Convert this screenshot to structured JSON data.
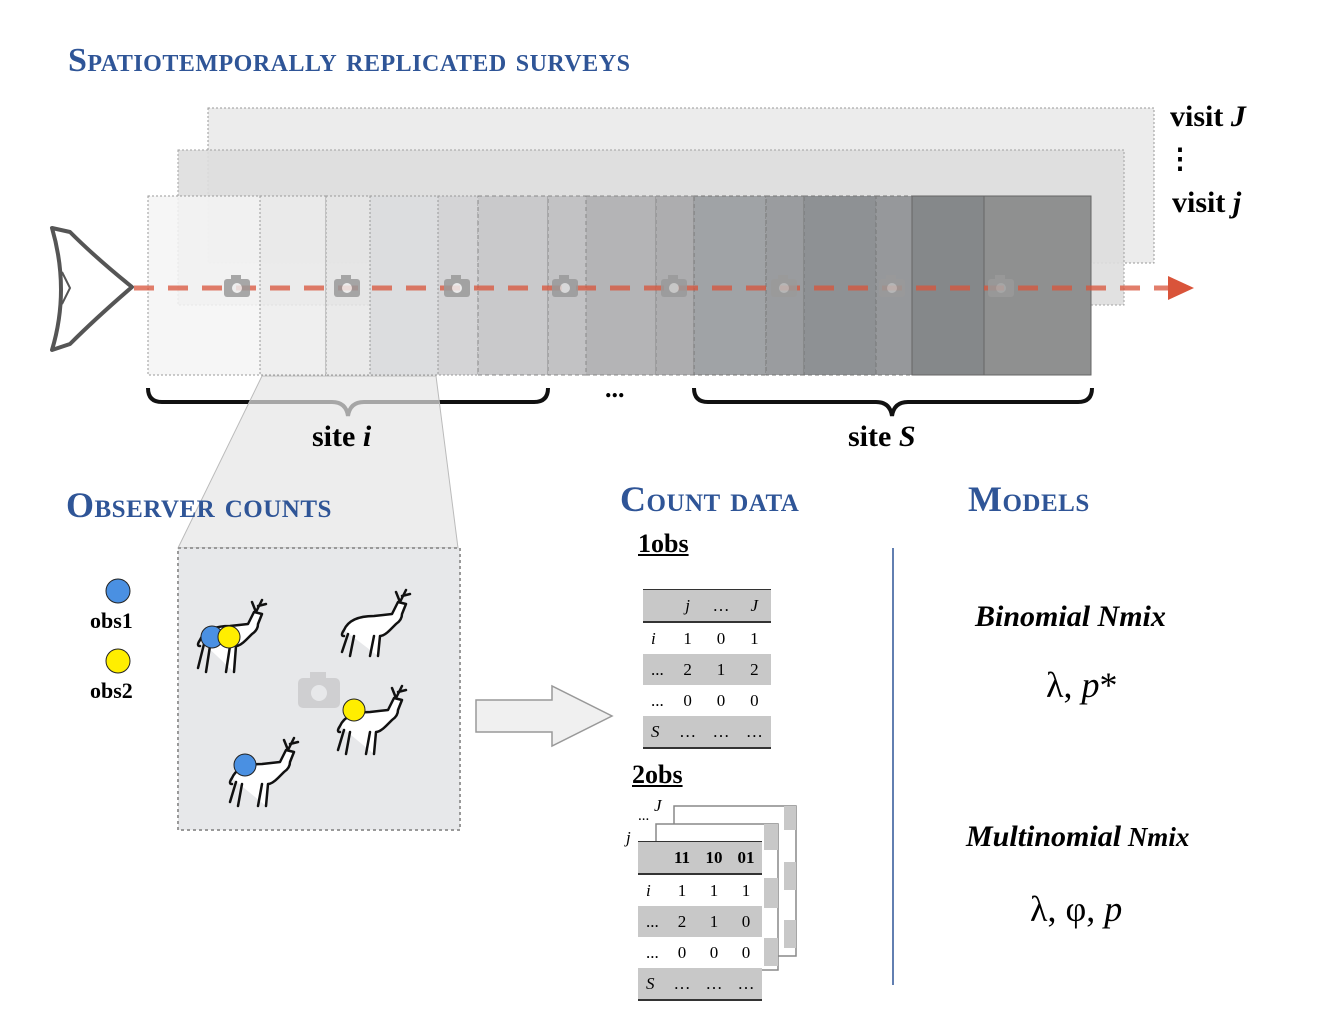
{
  "sections": {
    "surveys_title": "Spatiotemporally replicated surveys",
    "observer_title": "Observer counts",
    "count_title": "Count data",
    "models_title": "Models"
  },
  "visits": {
    "top_prefix": "visit ",
    "top_var": "J",
    "dots": "⋮",
    "bottom_prefix": "visit ",
    "bottom_var": "j"
  },
  "sites": {
    "site_i_prefix": "site ",
    "site_i_var": "i",
    "ellipsis": "...",
    "site_s_prefix": "site ",
    "site_s_var": "S"
  },
  "observers": [
    {
      "label": "obs1",
      "color": "#4a90e2"
    },
    {
      "label": "obs2",
      "color": "#ffee00"
    }
  ],
  "count_data": {
    "one_obs_label": "1obs",
    "one_obs_table": {
      "header": [
        "",
        "j",
        "…",
        "J"
      ],
      "rows": [
        [
          "i",
          "1",
          "0",
          "1"
        ],
        [
          "...",
          "2",
          "1",
          "2"
        ],
        [
          "...",
          "0",
          "0",
          "0"
        ],
        [
          "S",
          "…",
          "…",
          "…"
        ]
      ]
    },
    "two_obs_label": "2obs",
    "stack_labels": {
      "J": "J",
      "dots": "...",
      "j": "j"
    },
    "two_obs_table": {
      "header": [
        "",
        "11",
        "10",
        "01"
      ],
      "rows": [
        [
          "i",
          "1",
          "1",
          "1"
        ],
        [
          "...",
          "2",
          "1",
          "0"
        ],
        [
          "...",
          "0",
          "0",
          "0"
        ],
        [
          "S",
          "…",
          "…",
          "…"
        ]
      ]
    }
  },
  "models": {
    "binomial_name_italic": "Binomial Nmix",
    "binomial_params": "λ, p*",
    "multinomial_name_italic": "Multinomial",
    "multinomial_name_rest": " Nmix",
    "multinomial_params": "λ, φ, p"
  },
  "colors": {
    "heading": "#2f5597",
    "flight_path": "#d9543a",
    "divider": "#2f5597"
  },
  "icons": [
    "airplane-icon",
    "camera-icon",
    "deer-icon",
    "arrow-right-icon"
  ]
}
